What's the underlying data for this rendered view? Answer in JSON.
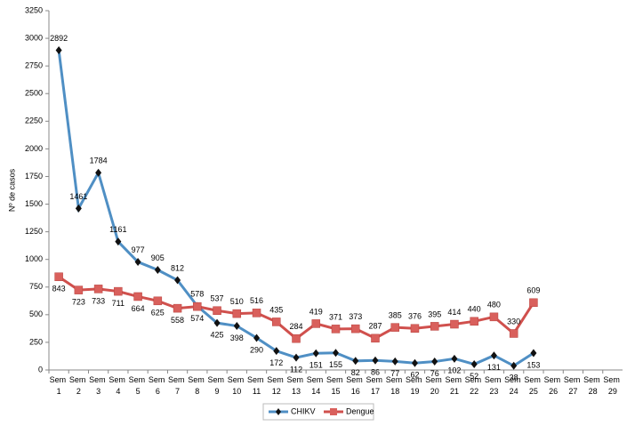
{
  "chart_data": {
    "type": "line",
    "y_label": "Nº de casos",
    "categories": [
      "Sem 1",
      "Sem 2",
      "Sem 3",
      "Sem 4",
      "Sem 5",
      "Sem 6",
      "Sem 7",
      "Sem 8",
      "Sem 9",
      "Sem 10",
      "Sem 11",
      "Sem 12",
      "Sem 13",
      "Sem 14",
      "Sem 15",
      "Sem 16",
      "Sem 17",
      "Sem 18",
      "Sem 19",
      "Sem 20",
      "Sem 21",
      "Sem 22",
      "Sem 23",
      "Sem 24",
      "Sem 25",
      "Sem 26",
      "Sem 27",
      "Sem 28",
      "Sem 29"
    ],
    "series": [
      {
        "name": "CHIKV",
        "color": "#4f8fc4",
        "marker_color": "#111111",
        "values": [
          2892,
          1461,
          1784,
          1161,
          977,
          905,
          812,
          578,
          425,
          398,
          290,
          172,
          112,
          151,
          155,
          82,
          86,
          77,
          62,
          76,
          102,
          52,
          131,
          38,
          153,
          null,
          null,
          null,
          null
        ]
      },
      {
        "name": "Dengue",
        "color": "#d0504d",
        "marker_color": "#d9605c",
        "values": [
          843,
          723,
          733,
          711,
          664,
          625,
          558,
          574,
          537,
          510,
          516,
          435,
          284,
          419,
          371,
          373,
          287,
          385,
          376,
          395,
          414,
          440,
          480,
          330,
          609,
          null,
          null,
          null,
          null
        ]
      }
    ],
    "ylim": [
      0,
      3250
    ],
    "yticks": [
      0,
      250,
      500,
      750,
      1000,
      1250,
      1500,
      1750,
      2000,
      2250,
      2500,
      2750,
      3000,
      3250
    ],
    "legend": "bottom"
  }
}
